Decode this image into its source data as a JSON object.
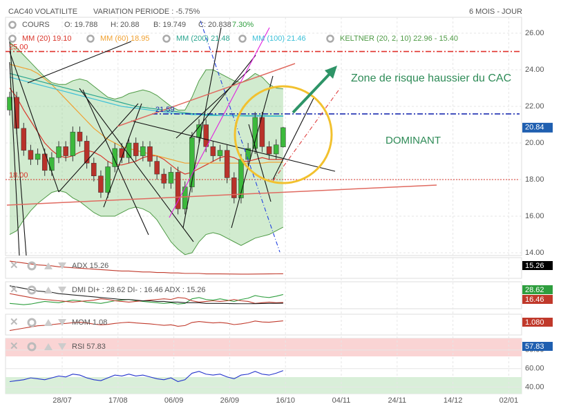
{
  "header": {
    "title": "CAC40 VOLATILITE",
    "variation": "VARIATION PERIODE : -5.75%",
    "period": "6 MOIS - JOUR"
  },
  "chart_data": {
    "type": "candlestick",
    "legend": {
      "cours": "COURS",
      "open": "O: 19.788",
      "high": "H: 20.88",
      "low": "B: 19.749",
      "close": "C: 20.838",
      "change": "7.30%"
    },
    "open": [
      21.8,
      22.5,
      20.8,
      19.6,
      19.1,
      19.4,
      18.5,
      19.2,
      19.8,
      19.3,
      20.6,
      20.1,
      18.9,
      18.2,
      17.3,
      18.7,
      19.7,
      19.2,
      20.0,
      19.3,
      19.8,
      19.0,
      18.3,
      17.8,
      18.4,
      16.4,
      17.6,
      20.3,
      21.0,
      19.8,
      19.3,
      19.6,
      18.1,
      17.0,
      19.1,
      19.7,
      21.4,
      19.8,
      19.4,
      19.788
    ],
    "high": [
      22.8,
      22.8,
      21.1,
      19.9,
      19.7,
      19.7,
      19.5,
      20.1,
      20.1,
      20.9,
      20.9,
      20.4,
      19.2,
      18.5,
      19.0,
      20.0,
      20.0,
      20.3,
      20.3,
      20.1,
      20.1,
      19.3,
      18.6,
      18.7,
      18.7,
      17.9,
      20.6,
      21.3,
      21.3,
      20.1,
      19.9,
      19.9,
      18.4,
      19.4,
      20.0,
      21.7,
      21.7,
      20.1,
      20.2,
      20.88
    ],
    "low": [
      21.5,
      20.5,
      19.3,
      18.8,
      18.8,
      18.2,
      18.2,
      18.9,
      19.0,
      19.0,
      19.8,
      18.6,
      17.9,
      17.0,
      17.0,
      18.4,
      18.9,
      18.9,
      19.0,
      19.0,
      18.7,
      18.0,
      17.5,
      17.5,
      16.1,
      16.1,
      17.3,
      20.0,
      19.5,
      19.0,
      19.0,
      17.8,
      16.7,
      16.7,
      18.8,
      19.4,
      19.5,
      19.1,
      19.1,
      19.749
    ],
    "close": [
      22.5,
      20.8,
      19.6,
      19.1,
      19.4,
      18.5,
      19.2,
      19.8,
      19.3,
      20.6,
      20.1,
      18.9,
      18.2,
      17.3,
      18.7,
      19.7,
      19.2,
      20.0,
      19.3,
      19.8,
      19.0,
      18.3,
      17.8,
      18.4,
      16.4,
      17.6,
      20.3,
      21.0,
      19.8,
      19.3,
      19.6,
      18.1,
      17.0,
      19.1,
      19.7,
      21.4,
      19.8,
      19.4,
      19.9,
      20.838
    ],
    "up_color": "#3cb93c",
    "down_color": "#b8322a",
    "ylim": [
      13.85,
      26.87
    ],
    "yticks": [
      {
        "value": 14,
        "label": "14.00"
      },
      {
        "value": 16,
        "label": "16.00"
      },
      {
        "value": 18,
        "label": "18.00"
      },
      {
        "value": 20,
        "label": "20.00"
      },
      {
        "value": 22,
        "label": "22.00"
      },
      {
        "value": 24,
        "label": "24.00"
      },
      {
        "value": 26,
        "label": "26.00"
      }
    ],
    "last_label": {
      "value": 20.838,
      "label": "20.84",
      "color": "#1f5fb0"
    },
    "series": [
      {
        "name": "MM (20) 19.10",
        "color": "#d9362b",
        "values": [
          23,
          22.5,
          21.8,
          21.2,
          20.6,
          20.0,
          19.6,
          19.3,
          19.2,
          19.3,
          19.5,
          19.6,
          19.5,
          19.3,
          19.0,
          18.8,
          18.8,
          18.9,
          19.0,
          19.2,
          19.3,
          19.3,
          19.1,
          18.8,
          18.5,
          18.3,
          18.4,
          18.6,
          18.8,
          19.0,
          19.2,
          19.3,
          19.2,
          19.0,
          19.0,
          19.1,
          19.2,
          19.1,
          19.1,
          19.1
        ]
      },
      {
        "name": "MM (60) 18.95",
        "color": "#f0a030",
        "values": [
          24.3,
          24.2,
          24.1,
          24.0,
          23.8,
          23.5,
          23.2,
          22.8,
          22.4,
          22.0,
          21.6,
          21.2,
          20.8,
          20.5,
          20.2,
          20.0,
          19.8,
          19.7,
          19.6,
          19.5,
          19.4,
          19.3,
          19.2,
          19.1,
          19.0,
          18.9,
          18.9,
          18.9,
          18.9,
          18.9,
          18.9,
          18.9,
          18.9,
          18.9,
          18.9,
          18.9,
          18.9,
          18.95,
          18.95,
          18.95
        ]
      },
      {
        "name": "MM (200) 21.48",
        "color": "#2aa58f",
        "values": [
          23.8,
          23.7,
          23.6,
          23.5,
          23.4,
          23.3,
          23.2,
          23.1,
          23.0,
          22.9,
          22.8,
          22.7,
          22.6,
          22.5,
          22.4,
          22.3,
          22.2,
          22.1,
          22.0,
          21.95,
          21.9,
          21.85,
          21.8,
          21.75,
          21.7,
          21.65,
          21.6,
          21.6,
          21.55,
          21.55,
          21.5,
          21.5,
          21.5,
          21.5,
          21.5,
          21.5,
          21.5,
          21.48,
          21.48,
          21.48
        ]
      },
      {
        "name": "MM (100) 21.46",
        "color": "#3cc0d8",
        "values": [
          23.6,
          23.5,
          23.4,
          23.3,
          23.2,
          23.1,
          23.0,
          22.9,
          22.8,
          22.7,
          22.6,
          22.5,
          22.4,
          22.3,
          22.2,
          22.1,
          22.0,
          21.95,
          21.9,
          21.85,
          21.8,
          21.75,
          21.7,
          21.65,
          21.6,
          21.6,
          21.55,
          21.55,
          21.5,
          21.5,
          21.5,
          21.5,
          21.48,
          21.48,
          21.47,
          21.47,
          21.47,
          21.46,
          21.46,
          21.46
        ]
      }
    ],
    "keltner": {
      "name": "KELTNER (20, 2, 10) 22.96 - 15.40",
      "color": "#4e9a45",
      "upper": [
        25.5,
        25.2,
        24.8,
        24.4,
        24.0,
        23.6,
        23.3,
        23.2,
        23.2,
        23.4,
        23.5,
        23.4,
        23.1,
        22.8,
        22.5,
        22.4,
        22.5,
        22.7,
        22.8,
        22.9,
        22.8,
        22.6,
        22.3,
        22.0,
        21.8,
        21.8,
        22.5,
        23.4,
        24.0,
        24.0,
        23.8,
        23.6,
        23.4,
        23.3,
        23.5,
        23.8,
        23.6,
        23.2,
        23.0,
        22.96
      ],
      "lower": [
        15.0,
        15.2,
        15.8,
        16.3,
        16.7,
        17.0,
        17.3,
        17.4,
        17.3,
        17.0,
        16.8,
        16.5,
        16.2,
        16.0,
        16.0,
        16.0,
        16.2,
        16.4,
        16.5,
        16.4,
        16.2,
        15.8,
        15.2,
        14.6,
        14.2,
        13.9,
        14.0,
        14.6,
        15.0,
        15.1,
        15.0,
        14.8,
        14.6,
        14.4,
        14.6,
        14.8,
        14.9,
        15.0,
        15.2,
        15.4
      ]
    },
    "levels": [
      {
        "value": 25,
        "label": "25.00",
        "color": "#e0302a"
      },
      {
        "value": 21.59,
        "label": "21.59",
        "color": "#1a2bb0"
      },
      {
        "value": 18,
        "label": "18.00",
        "color": "#d9362b"
      }
    ],
    "annotations": [
      "Zone de risque haussier du CAC",
      "DOMINANT"
    ],
    "xticks": [
      "28/07",
      "17/08",
      "06/09",
      "26/09",
      "16/10",
      "04/11",
      "24/11",
      "14/12",
      "02/01"
    ]
  },
  "indicators": [
    {
      "legend": "ADX 15.26",
      "boxes": [
        {
          "label": "15.26",
          "color": "#000000"
        }
      ],
      "ylim": [
        10,
        45
      ],
      "series": [
        {
          "color": "#c0392b",
          "values": [
            42,
            40,
            38,
            36,
            34,
            33,
            32,
            30,
            29,
            28,
            27,
            26,
            25,
            24,
            23,
            22,
            21,
            21,
            20,
            19,
            19,
            18,
            18,
            17,
            17,
            16,
            16,
            16,
            15,
            15,
            15,
            14.8,
            14.6,
            14.5,
            14.5,
            14.6,
            14.8,
            15.0,
            15.1,
            15.26
          ]
        }
      ]
    },
    {
      "legend": "DMI DI+ : 28.62 DI- : 16.46 ADX : 15.26",
      "boxes": [
        {
          "label": "28.62",
          "color": "#2e9e3e"
        },
        {
          "label": "16.46",
          "color": "#c0392b"
        }
      ],
      "ylim": [
        10,
        45
      ],
      "series": [
        {
          "color": "#2e9e3e",
          "values": [
            15,
            14,
            13,
            14,
            16,
            18,
            17,
            16,
            18,
            20,
            19,
            17,
            16,
            15,
            17,
            19,
            20,
            21,
            19,
            18,
            17,
            16,
            15,
            16,
            14,
            15,
            22,
            24,
            21,
            20,
            22,
            20,
            18,
            21,
            23,
            27,
            25,
            24,
            26,
            28.62
          ]
        },
        {
          "color": "#c0392b",
          "values": [
            30,
            28,
            26,
            24,
            22,
            21,
            20,
            19,
            18,
            17,
            18,
            19,
            20,
            22,
            21,
            19,
            18,
            17,
            18,
            19,
            20,
            21,
            22,
            21,
            24,
            23,
            19,
            17,
            18,
            19,
            18,
            19,
            21,
            19,
            18,
            15,
            16,
            17,
            16,
            16.46
          ]
        },
        {
          "color": "#222222",
          "values": [
            42,
            40,
            38,
            36,
            34,
            33,
            32,
            30,
            29,
            28,
            27,
            26,
            25,
            24,
            23,
            22,
            21,
            21,
            20,
            19,
            19,
            18,
            18,
            17,
            17,
            16,
            16,
            16,
            15,
            15,
            15,
            14.8,
            14.6,
            14.5,
            14.5,
            14.6,
            14.8,
            15.0,
            15.1,
            15.26
          ]
        }
      ]
    },
    {
      "legend": "MOM 1.08",
      "boxes": [
        {
          "label": "1.080",
          "color": "#c0392b"
        }
      ],
      "ylim": [
        -4,
        3
      ],
      "series": [
        {
          "color": "#c0392b",
          "values": [
            -3,
            -2.5,
            -2,
            -1.5,
            -1,
            -0.8,
            -0.5,
            -0.2,
            0,
            0.3,
            0.5,
            0.2,
            -0.3,
            -0.6,
            -0.4,
            0,
            0.3,
            0.5,
            0.2,
            0,
            -0.2,
            -0.5,
            -0.8,
            -0.6,
            -1.2,
            -0.9,
            0.4,
            0.8,
            0.5,
            0.2,
            0.4,
            0.1,
            -0.5,
            -0.2,
            0.3,
            1.0,
            0.6,
            0.5,
            0.8,
            1.08
          ]
        }
      ]
    },
    {
      "legend": "RSI 57.83",
      "boxes": [
        {
          "label": "57.83",
          "color": "#1f5fb0"
        }
      ],
      "ylim": [
        35.2,
        90.3
      ],
      "yticks": [
        {
          "value": 80,
          "label": "80.00"
        },
        {
          "value": 60,
          "label": "60.00"
        },
        {
          "value": 40,
          "label": "40.00"
        }
      ],
      "series": [
        {
          "color": "#2233cc",
          "values": [
            46,
            47,
            48,
            50,
            49,
            48,
            50,
            52,
            51,
            54,
            53,
            50,
            48,
            47,
            50,
            53,
            52,
            54,
            52,
            53,
            51,
            49,
            48,
            50,
            46,
            48,
            55,
            57,
            54,
            53,
            54,
            51,
            49,
            53,
            54,
            57,
            54,
            53,
            55,
            57.83
          ]
        }
      ]
    }
  ]
}
